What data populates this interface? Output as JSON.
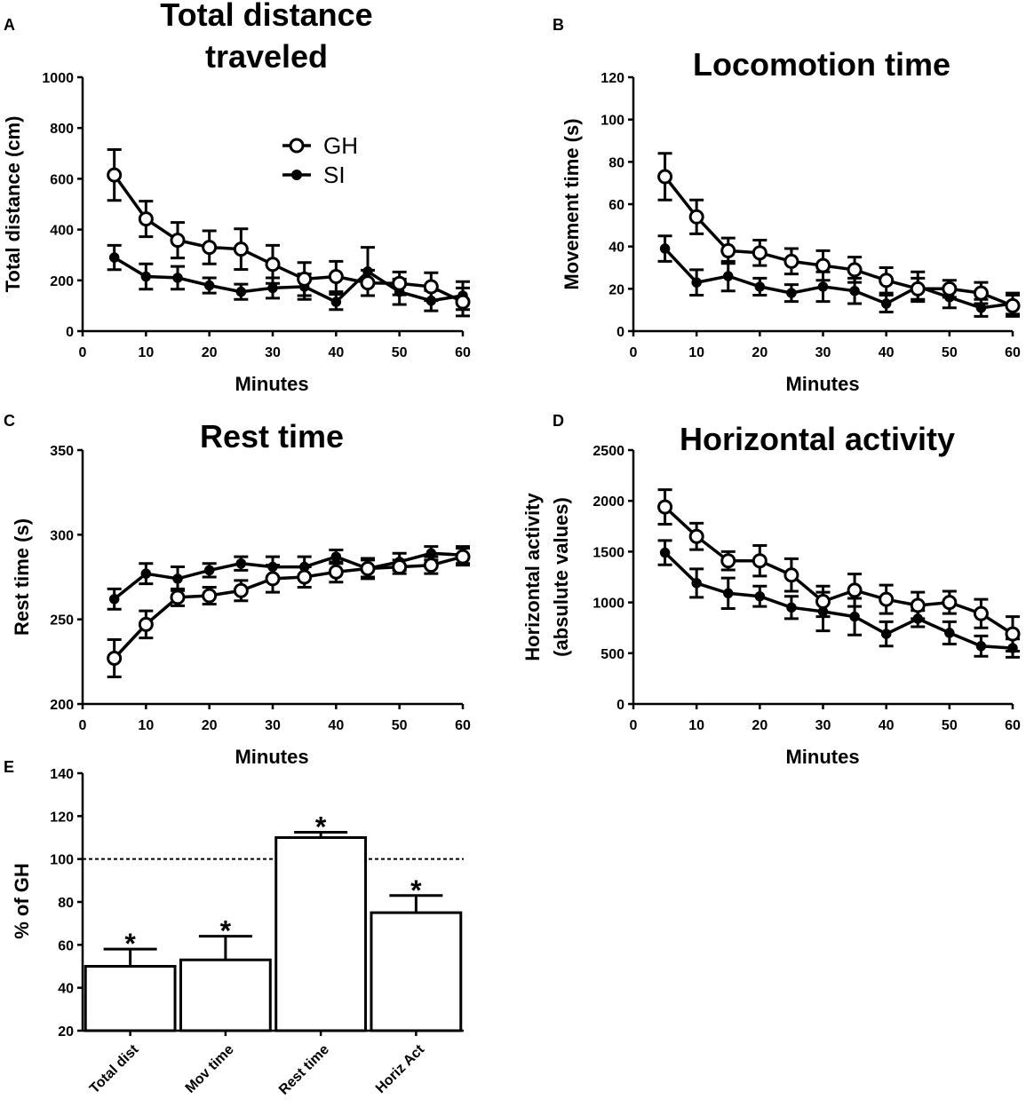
{
  "chart_data": [
    {
      "panel": "A",
      "type": "line",
      "title_lines": [
        "Total distance",
        "traveled"
      ],
      "xlabel": "Minutes",
      "ylabel_lines": [
        "Total distance (cm)"
      ],
      "xlim": [
        0,
        60
      ],
      "ylim": [
        0,
        1000
      ],
      "xticks": [
        0,
        10,
        20,
        30,
        40,
        50,
        60
      ],
      "yticks": [
        0,
        200,
        400,
        600,
        800,
        1000
      ],
      "x": [
        5,
        10,
        15,
        20,
        25,
        30,
        35,
        40,
        45,
        50,
        55,
        60
      ],
      "series": [
        {
          "name": "GH",
          "marker": "open",
          "values": [
            615,
            442,
            358,
            330,
            323,
            263,
            205,
            215,
            190,
            188,
            175,
            115
          ],
          "errors": [
            100,
            70,
            70,
            65,
            80,
            75,
            65,
            60,
            50,
            45,
            55,
            55
          ]
        },
        {
          "name": "SI",
          "marker": "filled",
          "values": [
            290,
            215,
            210,
            180,
            155,
            170,
            175,
            115,
            235,
            155,
            120,
            140
          ],
          "errors": [
            48,
            50,
            45,
            30,
            30,
            40,
            50,
            30,
            95,
            50,
            40,
            55
          ]
        }
      ],
      "legend": {
        "placement": "top-right",
        "entries": [
          "GH",
          "SI"
        ]
      }
    },
    {
      "panel": "B",
      "type": "line",
      "title_lines": [
        "Locomotion time"
      ],
      "xlabel": "Minutes",
      "ylabel_lines": [
        "Movement time (s)"
      ],
      "xlim": [
        0,
        60
      ],
      "ylim": [
        0,
        120
      ],
      "xticks": [
        0,
        10,
        20,
        30,
        40,
        50,
        60
      ],
      "yticks": [
        0,
        20,
        40,
        60,
        80,
        100,
        120
      ],
      "x": [
        5,
        10,
        15,
        20,
        25,
        30,
        35,
        40,
        45,
        50,
        55,
        60
      ],
      "series": [
        {
          "name": "GH",
          "marker": "open",
          "values": [
            73,
            54,
            38,
            37,
            33,
            31,
            29,
            24,
            20,
            20,
            18,
            12
          ],
          "errors": [
            11,
            8,
            6,
            6,
            6,
            7,
            6,
            6,
            5,
            4,
            5,
            5
          ]
        },
        {
          "name": "SI",
          "marker": "filled",
          "values": [
            39,
            23,
            26,
            21,
            18,
            21,
            19,
            13,
            21,
            16,
            11,
            13
          ],
          "errors": [
            6,
            6,
            7,
            4,
            4,
            7,
            6,
            4,
            7,
            5,
            4,
            5
          ]
        }
      ]
    },
    {
      "panel": "C",
      "type": "line",
      "title_lines": [
        "Rest time"
      ],
      "xlabel": "Minutes",
      "ylabel_lines": [
        "Rest time (s)"
      ],
      "xlim": [
        0,
        60
      ],
      "ylim": [
        200,
        350
      ],
      "xticks": [
        0,
        10,
        20,
        30,
        40,
        50,
        60
      ],
      "yticks": [
        200,
        250,
        300,
        350
      ],
      "x": [
        5,
        10,
        15,
        20,
        25,
        30,
        35,
        40,
        45,
        50,
        55,
        60
      ],
      "series": [
        {
          "name": "GH",
          "marker": "open",
          "values": [
            227,
            247,
            263,
            264,
            267,
            274,
            275,
            278,
            280,
            281,
            282,
            287
          ],
          "errors": [
            11,
            8,
            5,
            5,
            6,
            8,
            6,
            6,
            5,
            4,
            5,
            5
          ]
        },
        {
          "name": "SI",
          "marker": "filled",
          "values": [
            262,
            277,
            274,
            279,
            283,
            281,
            281,
            287,
            280,
            284,
            289,
            288
          ],
          "errors": [
            6,
            6,
            7,
            4,
            4,
            6,
            6,
            4,
            6,
            5,
            4,
            5
          ]
        }
      ]
    },
    {
      "panel": "D",
      "type": "line",
      "title_lines": [
        "Horizontal activity"
      ],
      "xlabel": "Minutes",
      "ylabel_lines": [
        "Horizontal activity",
        "(absulute values)"
      ],
      "xlim": [
        0,
        60
      ],
      "ylim": [
        0,
        2500
      ],
      "xticks": [
        0,
        10,
        20,
        30,
        40,
        50,
        60
      ],
      "yticks": [
        0,
        500,
        1000,
        1500,
        2000,
        2500
      ],
      "x": [
        5,
        10,
        15,
        20,
        25,
        30,
        35,
        40,
        45,
        50,
        55,
        60
      ],
      "series": [
        {
          "name": "GH",
          "marker": "open",
          "values": [
            1940,
            1650,
            1410,
            1410,
            1270,
            1010,
            1120,
            1030,
            970,
            1000,
            890,
            690
          ],
          "errors": [
            170,
            130,
            90,
            150,
            160,
            150,
            160,
            140,
            130,
            110,
            140,
            170
          ]
        },
        {
          "name": "SI",
          "marker": "filled",
          "values": [
            1490,
            1190,
            1090,
            1060,
            950,
            910,
            860,
            690,
            840,
            700,
            570,
            550
          ],
          "errors": [
            120,
            140,
            150,
            100,
            110,
            190,
            180,
            120,
            80,
            110,
            100,
            90
          ]
        }
      ]
    },
    {
      "panel": "E",
      "type": "bar",
      "title_lines": [],
      "xlabel": "",
      "ylabel_lines": [
        "% of GH"
      ],
      "ylim": [
        20,
        140
      ],
      "yticks": [
        20,
        40,
        60,
        80,
        100,
        120,
        140
      ],
      "categories": [
        "Total dist",
        "Mov time",
        "Rest time",
        "Horiz Act"
      ],
      "values": [
        50,
        53,
        110,
        75
      ],
      "errors": [
        8,
        11,
        2.5,
        8
      ],
      "significance": [
        "*",
        "*",
        "*",
        "*"
      ],
      "reference_line": 100
    }
  ]
}
